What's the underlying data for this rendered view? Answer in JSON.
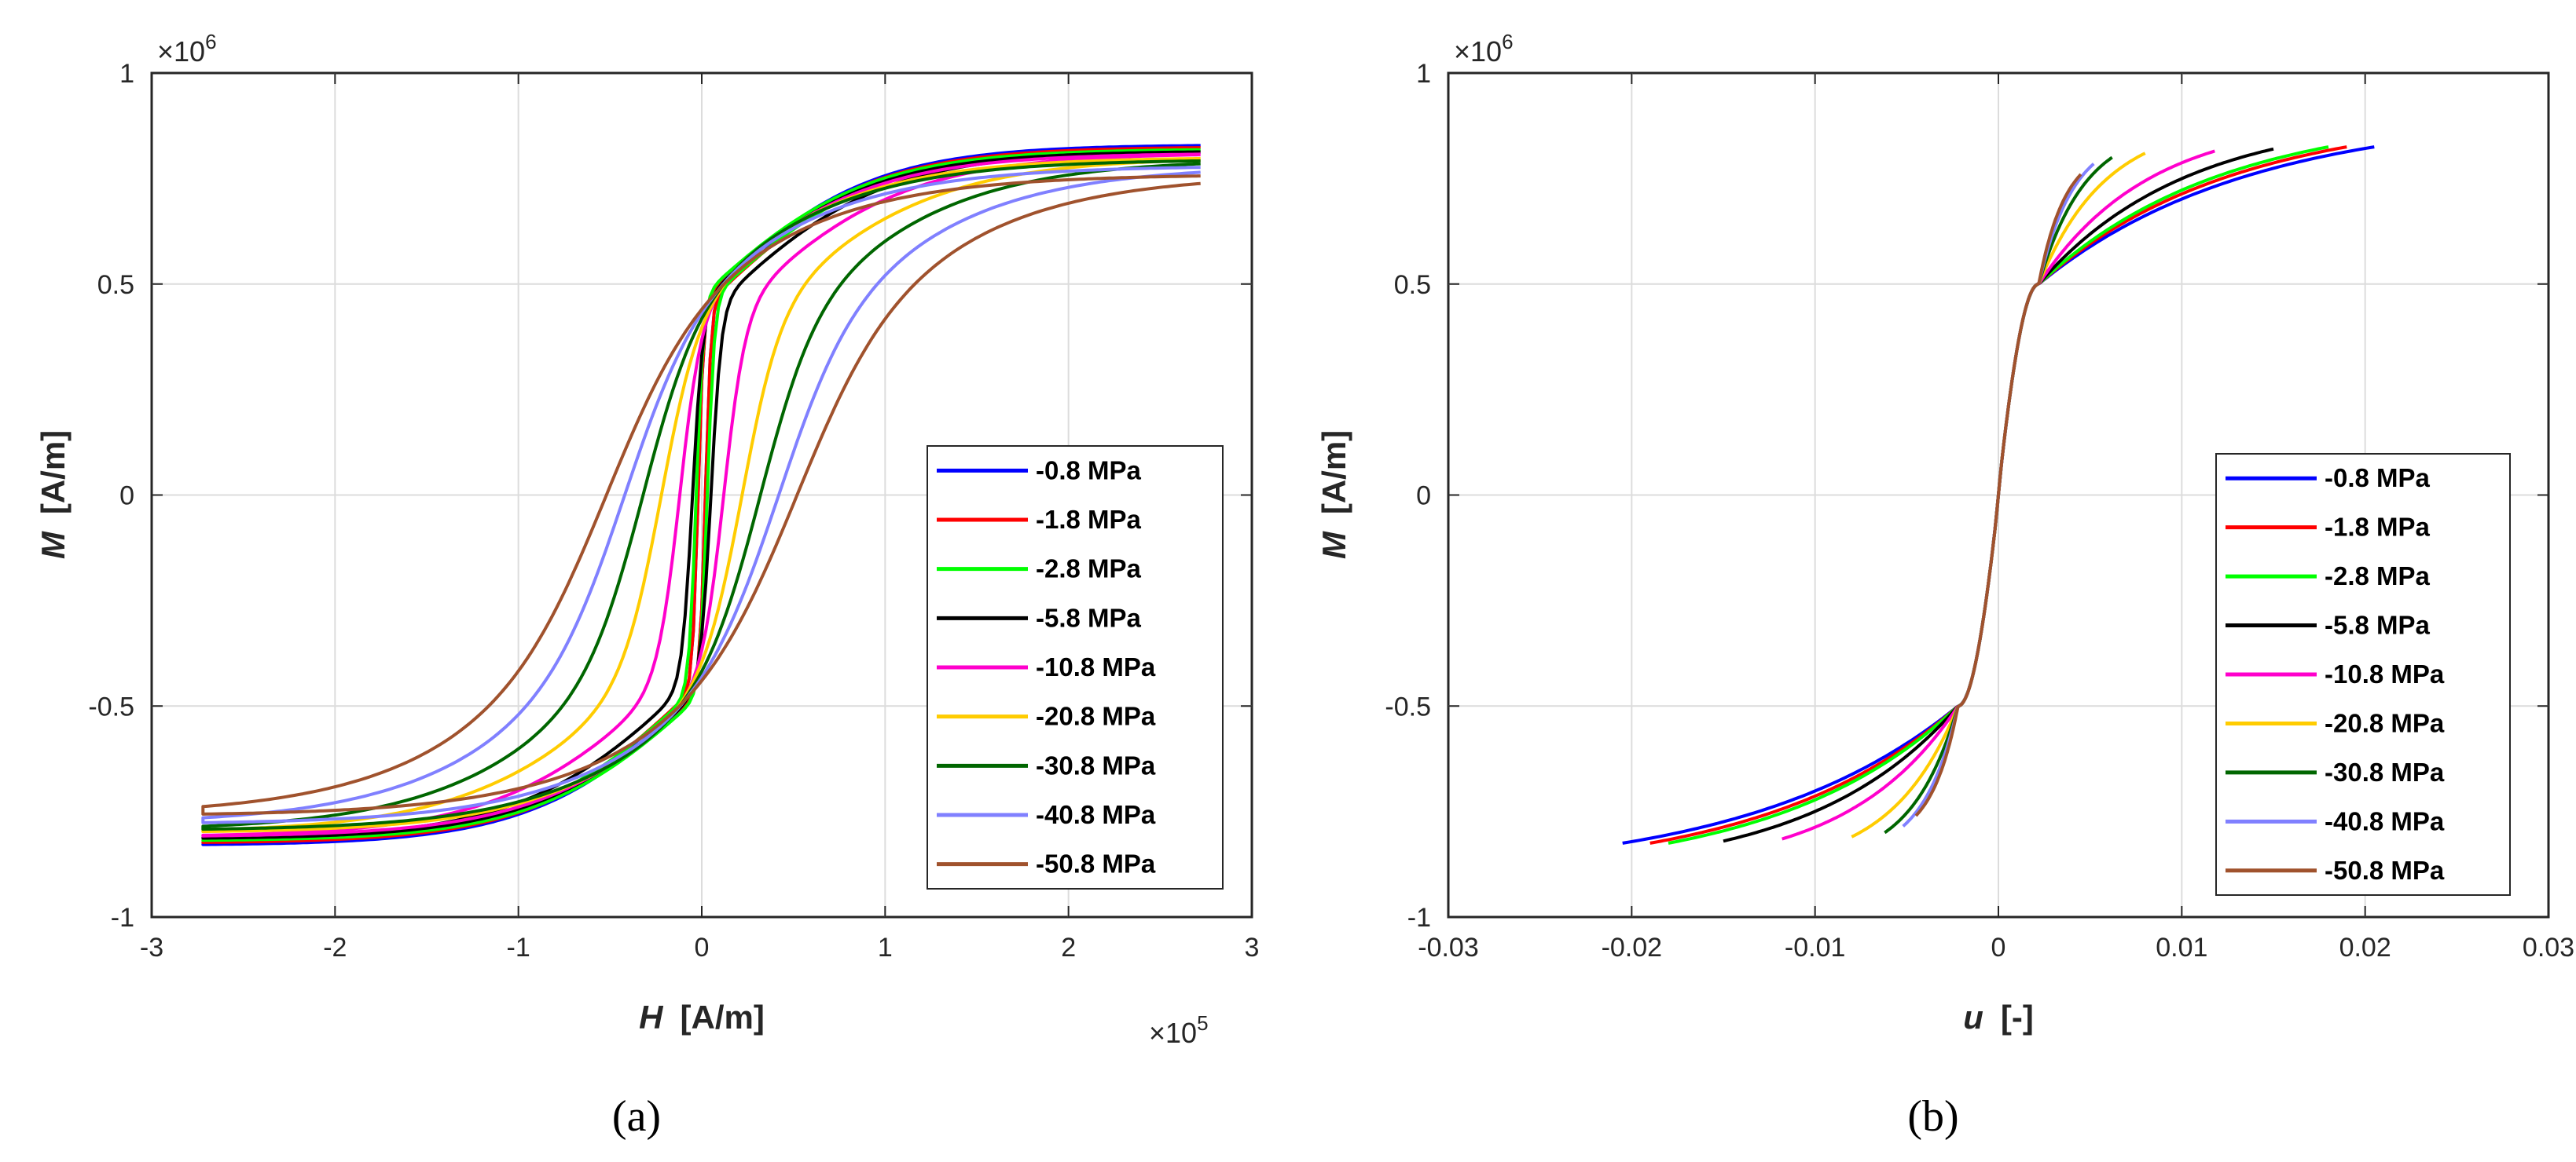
{
  "chart_data": [
    {
      "type": "line",
      "caption": "(a)",
      "xlabel_var": "H",
      "xlabel_unit": "[A/m]",
      "ylabel_var": "M",
      "ylabel_unit": "[A/m]",
      "x_exponent": "×10",
      "x_exponent_power": "5",
      "y_exponent": "×10",
      "y_exponent_power": "6",
      "xlim": [
        -3,
        3
      ],
      "ylim": [
        -1,
        1
      ],
      "xticks": [
        "-3",
        "-2",
        "-1",
        "0",
        "1",
        "2",
        "3"
      ],
      "yticks": [
        "-1",
        "-0.5",
        "0",
        "0.5",
        "1"
      ],
      "grid": true,
      "legend_position": "lower-right",
      "x_units_note": "x values in units of 1e5 A/m, y values in units of 1e6 A/m",
      "series": [
        {
          "name": "-0.8 MPa",
          "color": "#0000ff",
          "Hc": 0.02,
          "Mknee": 0.45,
          "Msat": 0.83,
          "Hmax": 2.72
        },
        {
          "name": "-1.8 MPa",
          "color": "#ff0000",
          "Hc": 0.02,
          "Mknee": 0.45,
          "Msat": 0.825,
          "Hmax": 2.72
        },
        {
          "name": "-2.8 MPa",
          "color": "#00ff00",
          "Hc": 0.03,
          "Mknee": 0.46,
          "Msat": 0.82,
          "Hmax": 2.72
        },
        {
          "name": "-5.8 MPa",
          "color": "#000000",
          "Hc": 0.05,
          "Mknee": 0.44,
          "Msat": 0.815,
          "Hmax": 2.72
        },
        {
          "name": "-10.8 MPa",
          "color": "#ff00cc",
          "Hc": 0.12,
          "Mknee": 0.42,
          "Msat": 0.81,
          "Hmax": 2.72
        },
        {
          "name": "-20.8 MPa",
          "color": "#ffcc00",
          "Hc": 0.22,
          "Mknee": 0.4,
          "Msat": 0.8,
          "Hmax": 2.72
        },
        {
          "name": "-30.8 MPa",
          "color": "#006600",
          "Hc": 0.32,
          "Mknee": 0.38,
          "Msat": 0.795,
          "Hmax": 2.72
        },
        {
          "name": "-40.8 MPa",
          "color": "#8080ff",
          "Hc": 0.42,
          "Mknee": 0.36,
          "Msat": 0.78,
          "Hmax": 2.72
        },
        {
          "name": "-50.8 MPa",
          "color": "#a0522d",
          "Hc": 0.52,
          "Mknee": 0.34,
          "Msat": 0.76,
          "Hmax": 2.72
        }
      ]
    },
    {
      "type": "line",
      "caption": "(b)",
      "xlabel_var": "u",
      "xlabel_unit": "[-]",
      "ylabel_var": "M",
      "ylabel_unit": "[A/m]",
      "y_exponent": "×10",
      "y_exponent_power": "6",
      "xlim": [
        -0.03,
        0.03
      ],
      "ylim": [
        -1,
        1
      ],
      "xticks": [
        "-0.03",
        "-0.02",
        "-0.01",
        "0",
        "0.01",
        "0.02",
        "0.03"
      ],
      "yticks": [
        "-1",
        "-0.5",
        "0",
        "0.5",
        "1"
      ],
      "grid": true,
      "legend_position": "lower-right",
      "series": [
        {
          "name": "-0.8 MPa",
          "color": "#0000ff",
          "umax": 0.0205,
          "Mend": 0.825
        },
        {
          "name": "-1.8 MPa",
          "color": "#ff0000",
          "umax": 0.019,
          "Mend": 0.825
        },
        {
          "name": "-2.8 MPa",
          "color": "#00ff00",
          "umax": 0.018,
          "Mend": 0.825
        },
        {
          "name": "-5.8 MPa",
          "color": "#000000",
          "umax": 0.015,
          "Mend": 0.82
        },
        {
          "name": "-10.8 MPa",
          "color": "#ff00cc",
          "umax": 0.0118,
          "Mend": 0.815
        },
        {
          "name": "-20.8 MPa",
          "color": "#ffcc00",
          "umax": 0.008,
          "Mend": 0.81
        },
        {
          "name": "-30.8 MPa",
          "color": "#006600",
          "umax": 0.0062,
          "Mend": 0.8
        },
        {
          "name": "-40.8 MPa",
          "color": "#8080ff",
          "umax": 0.0052,
          "Mend": 0.785
        },
        {
          "name": "-50.8 MPa",
          "color": "#a0522d",
          "umax": 0.0045,
          "Mend": 0.76
        }
      ]
    }
  ]
}
